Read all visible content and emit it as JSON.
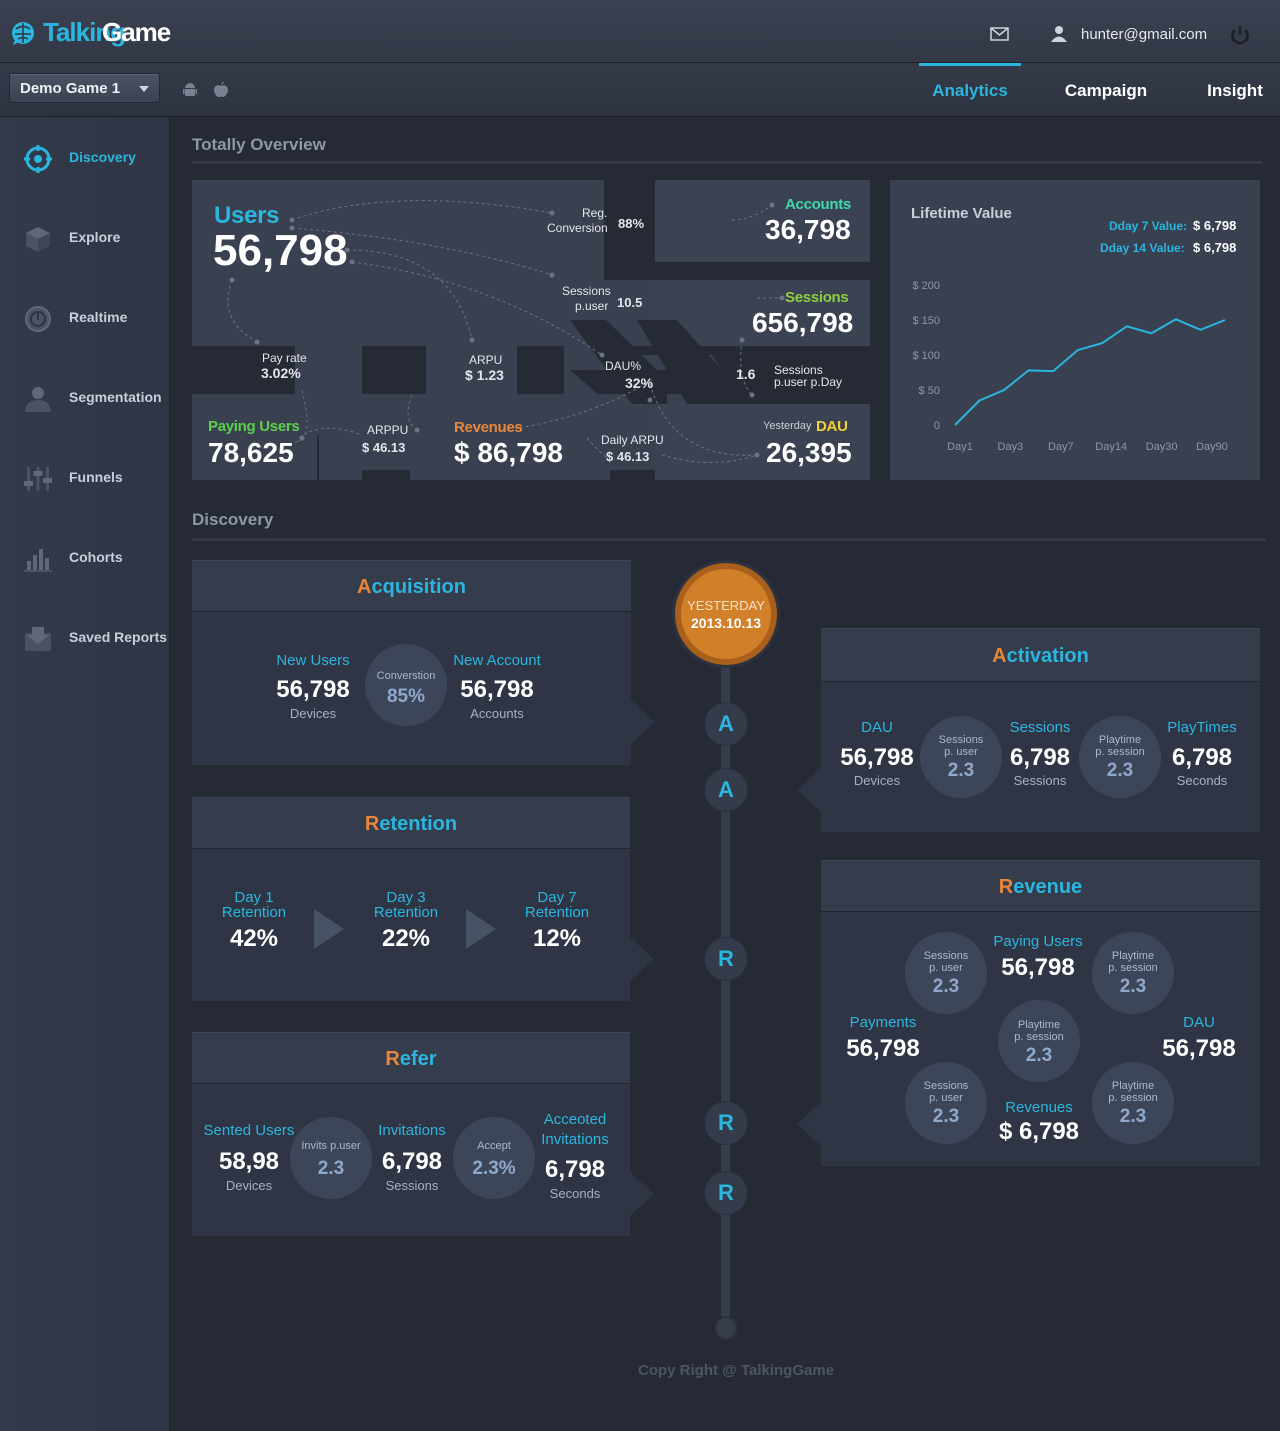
{
  "header": {
    "logo_part1": "Talking",
    "logo_part2": "Game",
    "user_email": "hunter@gmail.com",
    "game_select": "Demo Game 1",
    "tabs": [
      {
        "label": "Analytics",
        "active": true
      },
      {
        "label": "Campaign",
        "active": false
      },
      {
        "label": "Insight",
        "active": false
      }
    ]
  },
  "sidebar": {
    "items": [
      {
        "label": "Discovery",
        "icon": "target-icon",
        "active": true
      },
      {
        "label": "Explore",
        "icon": "cube-icon",
        "active": false
      },
      {
        "label": "Realtime",
        "icon": "clock-icon",
        "active": false
      },
      {
        "label": "Segmentation",
        "icon": "person-icon",
        "active": false
      },
      {
        "label": "Funnels",
        "icon": "sliders-icon",
        "active": false
      },
      {
        "label": "Cohorts",
        "icon": "bar-chart-icon",
        "active": false
      },
      {
        "label": "Saved Reports",
        "icon": "inbox-icon",
        "active": false
      }
    ]
  },
  "overview": {
    "title": "Totally Overview",
    "users_label": "Users",
    "users_value": "56,798",
    "reg_conversion_label_1": "Reg.",
    "reg_conversion_label_2": "Conversion",
    "reg_conversion_value": "88%",
    "accounts_label": "Accounts",
    "accounts_value": "36,798",
    "sessions_puser_label_1": "Sessions",
    "sessions_puser_label_2": "p.user",
    "sessions_puser_value": "10.5",
    "sessions_label": "Sessions",
    "sessions_value": "656,798",
    "pay_rate_label": "Pay rate",
    "pay_rate_value": "3.02%",
    "arpu_label": "ARPU",
    "arpu_value": "$ 1.23",
    "dau_pct_label": "DAU%",
    "dau_pct_value": "32%",
    "sessions_puser_pday_value": "1.6",
    "sessions_puser_pday_label_1": "Sessions",
    "sessions_puser_pday_label_2": "p.user p.Day",
    "paying_users_label": "Paying Users",
    "paying_users_value": "78,625",
    "arppu_label": "ARPPU",
    "arppu_value": "$ 46.13",
    "revenues_label": "Revenues",
    "revenues_value": "$ 86,798",
    "daily_arpu_label": "Daily ARPU",
    "daily_arpu_value": "$ 46.13",
    "yesterday_label": "Yesterday",
    "dau_label": "DAU",
    "dau_value": "26,395"
  },
  "lifetime": {
    "title": "Lifetime Value",
    "day7_label": "Dday 7 Value:",
    "day7_value": "$ 6,798",
    "day14_label": "Dday 14 Value:",
    "day14_value": "$ 6,798"
  },
  "chart_data": {
    "type": "line",
    "title": "Lifetime Value",
    "x_ticks": [
      "Day1",
      "Day3",
      "Day7",
      "Day14",
      "Day30",
      "Day90"
    ],
    "y_ticks": [
      "$ 200",
      "$ 150",
      "$ 100",
      "$ 50",
      "0"
    ],
    "ylim": [
      0,
      200
    ],
    "series": [
      {
        "values": [
          0,
          35,
          50,
          78,
          77,
          107,
          117,
          141,
          131,
          151,
          136,
          150
        ]
      }
    ],
    "color": "#2bb6e0"
  },
  "discovery": {
    "title": "Discovery",
    "date_label": "YESTERDAY",
    "date_value": "2013.10.13",
    "timeline_nodes": [
      "A",
      "A",
      "R",
      "R",
      "R"
    ],
    "acquisition": {
      "title_first": "A",
      "title_rest": "cquisition",
      "new_users_label": "New Users",
      "new_users_value": "56,798",
      "new_users_sub": "Devices",
      "conversion_label": "Converstion",
      "conversion_value": "85%",
      "new_account_label": "New Account",
      "new_account_value": "56,798",
      "new_account_sub": "Accounts"
    },
    "activation": {
      "title_first": "A",
      "title_rest": "ctivation",
      "dau_label": "DAU",
      "dau_value": "56,798",
      "dau_sub": "Devices",
      "spu_label_1": "Sessions",
      "spu_label_2": "p. user",
      "spu_value": "2.3",
      "sessions_label": "Sessions",
      "sessions_value": "6,798",
      "sessions_sub": "Sessions",
      "pps_label_1": "Playtime",
      "pps_label_2": "p. session",
      "pps_value": "2.3",
      "playtimes_label": "PlayTimes",
      "playtimes_value": "6,798",
      "playtimes_sub": "Seconds"
    },
    "retention": {
      "title_first": "R",
      "title_rest": "etention",
      "d1_label_1": "Day 1",
      "d1_label_2": "Retention",
      "d1_value": "42%",
      "d3_label_1": "Day 3",
      "d3_label_2": "Retention",
      "d3_value": "22%",
      "d7_label_1": "Day 7",
      "d7_label_2": "Retention",
      "d7_value": "12%"
    },
    "revenue": {
      "title_first": "R",
      "title_rest": "evenue",
      "paying_users_label": "Paying Users",
      "paying_users_value": "56,798",
      "payments_label": "Payments",
      "payments_value": "56,798",
      "dau_label": "DAU",
      "dau_value": "56,798",
      "revenues_label": "Revenues",
      "revenues_value": "$ 6,798",
      "c1_label_1": "Sessions",
      "c1_label_2": "p. user",
      "c1_value": "2.3",
      "c2_label_1": "Playtime",
      "c2_label_2": "p. session",
      "c2_value": "2.3",
      "c3_label_1": "Playtime",
      "c3_label_2": "p. session",
      "c3_value": "2.3",
      "c4_label_1": "Sessions",
      "c4_label_2": "p. user",
      "c4_value": "2.3",
      "c5_label_1": "Playtime",
      "c5_label_2": "p. session",
      "c5_value": "2.3"
    },
    "refer": {
      "title_first": "R",
      "title_rest": "efer",
      "sented_label": "Sented Users",
      "sented_value": "58,98",
      "sented_sub": "Devices",
      "invits_label": "Invits p.user",
      "invits_value": "2.3",
      "invitations_label": "Invitations",
      "invitations_value": "6,798",
      "invitations_sub": "Sessions",
      "accept_label": "Accept",
      "accept_value": "2.3%",
      "accepted_label_1": "Acceoted",
      "accepted_label_2": "Invitations",
      "accepted_value": "6,798",
      "accepted_sub": "Seconds"
    }
  },
  "footer": "Copy Right @ TalkingGame"
}
